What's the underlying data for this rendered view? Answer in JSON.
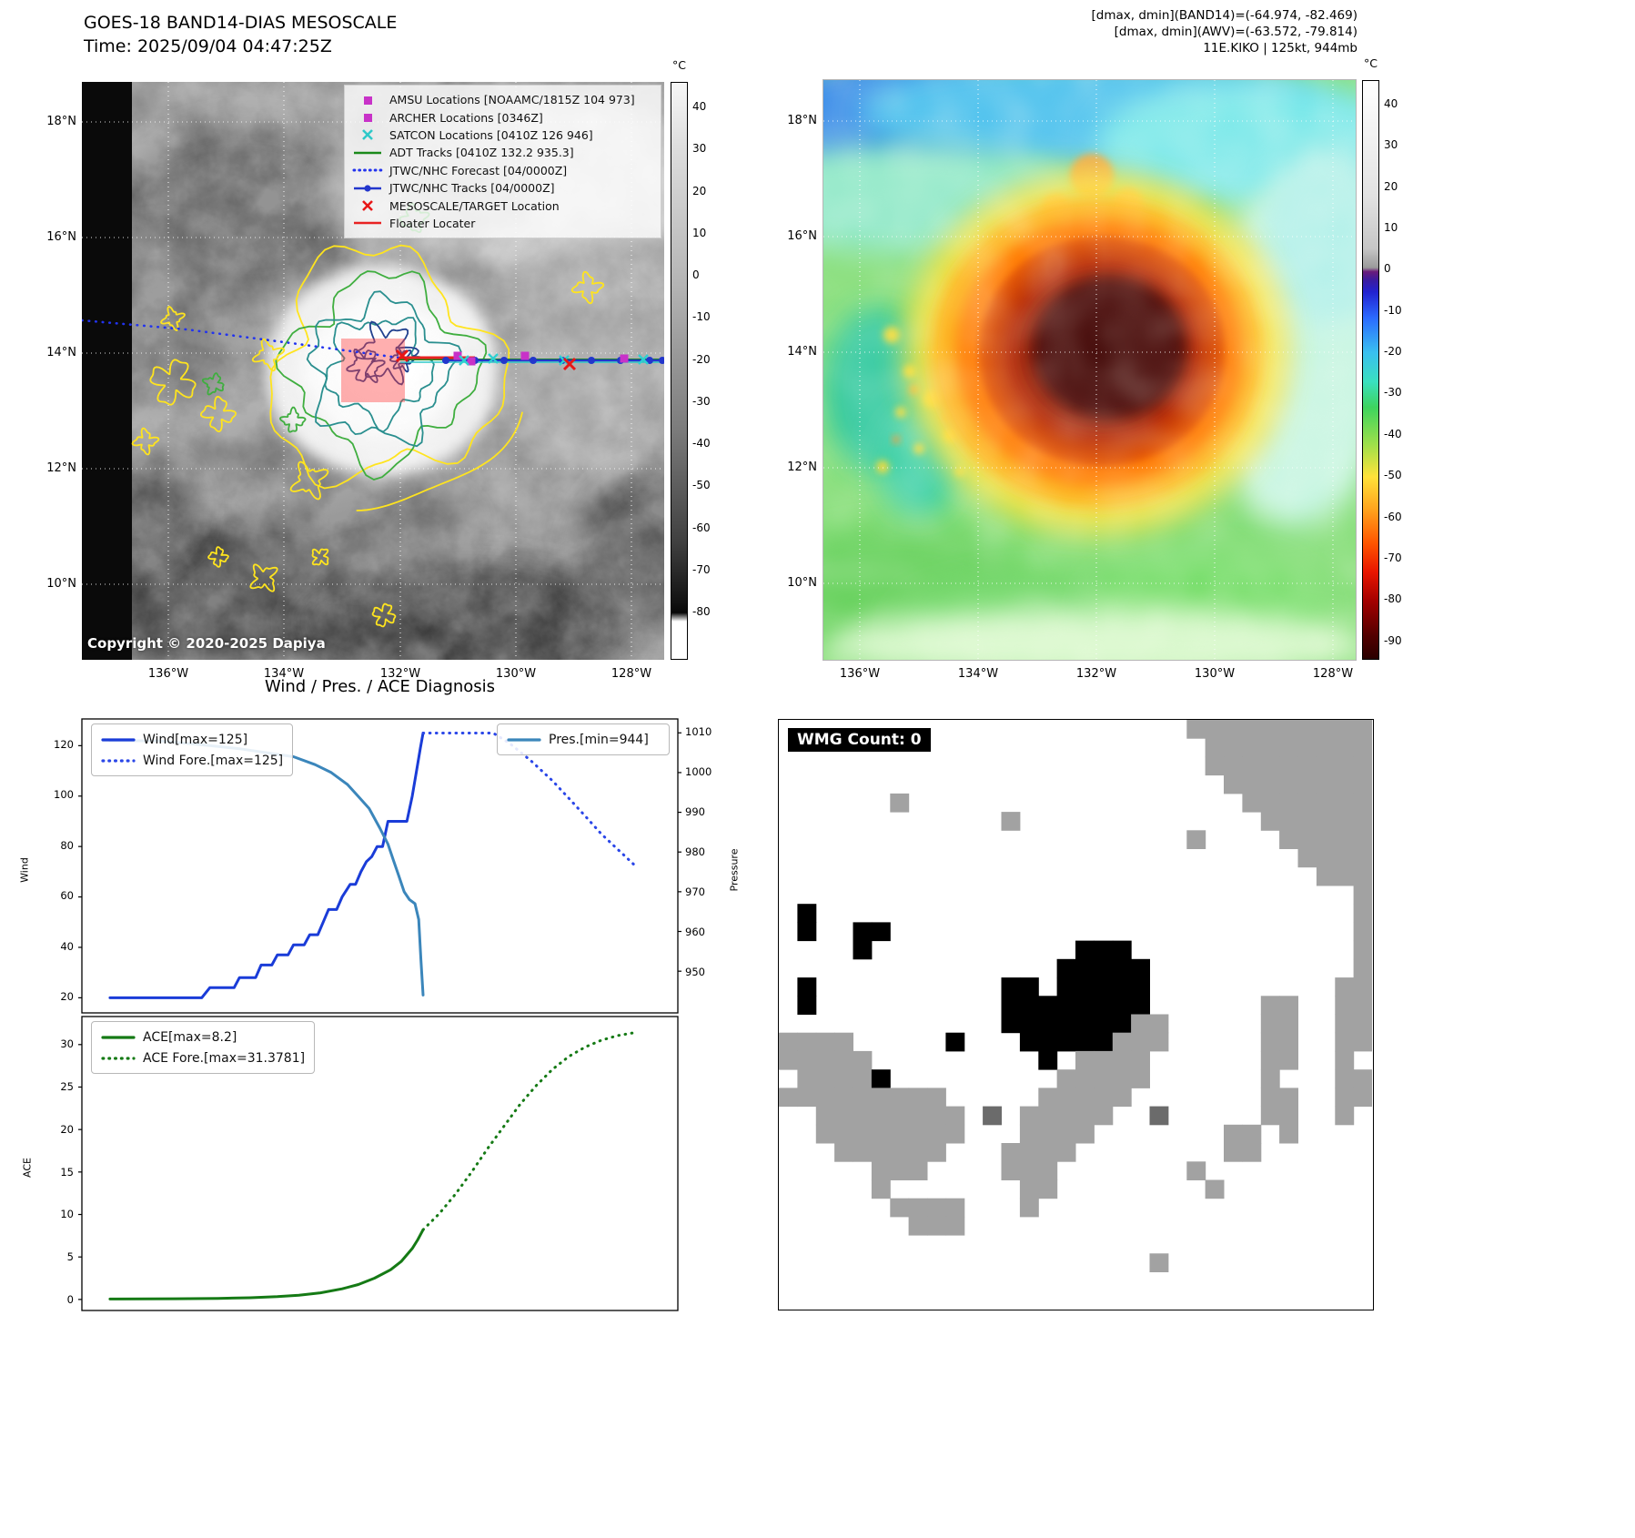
{
  "panel_tl": {
    "title": "GOES-18 BAND14-DIAS MESOSCALE",
    "subtitle": "Time: 2025/09/04 04:47:25Z",
    "copyright": "Copyright © 2020-2025 Dapiya",
    "colorbar": {
      "unit": "°C",
      "ticks": [
        40,
        30,
        20,
        10,
        0,
        -10,
        -20,
        -30,
        -40,
        -50,
        -60,
        -70,
        -80
      ]
    },
    "x_ticks": [
      "136°W",
      "134°W",
      "132°W",
      "130°W",
      "128°W"
    ],
    "y_ticks": [
      "18°N",
      "16°N",
      "14°N",
      "12°N",
      "10°N"
    ],
    "legend": [
      {
        "label": "AMSU Locations [NOAAMC/1815Z 104 973]",
        "marker": "square",
        "color": "#c832c8"
      },
      {
        "label": "ARCHER Locations [0346Z]",
        "marker": "square",
        "color": "#c832c8"
      },
      {
        "label": "SATCON Locations [0410Z 126 946]",
        "marker": "x",
        "color": "#2ec8c8"
      },
      {
        "label": "ADT Tracks [0410Z 132.2 935.3]",
        "marker": "line",
        "color": "#1a8a1a"
      },
      {
        "label": "JTWC/NHC Forecast [04/0000Z]",
        "marker": "dotted",
        "color": "#2233ee"
      },
      {
        "label": "JTWC/NHC Tracks [04/0000Z]",
        "marker": "line-dot",
        "color": "#2236cc"
      },
      {
        "label": "MESOSCALE/TARGET Location",
        "marker": "x",
        "color": "#e81616"
      },
      {
        "label": "Floater Locater",
        "marker": "line",
        "color": "#e82222"
      }
    ]
  },
  "panel_tr": {
    "header_lines": [
      "[dmax, dmin](BAND14)=(-64.974, -82.469)",
      "[dmax, dmin](AWV)=(-63.572, -79.814)",
      "11E.KIKO | 125kt, 944mb"
    ],
    "colorbar": {
      "unit": "°C",
      "ticks": [
        40,
        30,
        20,
        10,
        0,
        -10,
        -20,
        -30,
        -40,
        -50,
        -60,
        -70,
        -80,
        -90
      ]
    },
    "x_ticks": [
      "136°W",
      "134°W",
      "132°W",
      "130°W",
      "128°W"
    ],
    "y_ticks": [
      "18°N",
      "16°N",
      "14°N",
      "12°N",
      "10°N"
    ]
  },
  "chart_data": [
    {
      "type": "line",
      "title": "Wind / Pres. / ACE Diagnosis",
      "ylabel_left": "Wind",
      "ylabel_right": "Pressure",
      "xlim": [
        -5.2,
        105.2
      ],
      "ylim_left": [
        14,
        130.6
      ],
      "ylim_right": [
        939.5,
        1013.5
      ],
      "yticks_left": [
        20,
        40,
        60,
        80,
        100,
        120
      ],
      "yticks_right": [
        950,
        960,
        970,
        980,
        990,
        1000,
        1010
      ],
      "grid": false,
      "series": [
        {
          "name": "Wind[max=125]",
          "style": "solid",
          "color": "#1a3cd8",
          "axis": "left",
          "points": [
            [
              0,
              20
            ],
            [
              17,
              20
            ],
            [
              18.5,
              24
            ],
            [
              23,
              24
            ],
            [
              24,
              28
            ],
            [
              27,
              28
            ],
            [
              28,
              33
            ],
            [
              30,
              33
            ],
            [
              31,
              37
            ],
            [
              33,
              37
            ],
            [
              34,
              41
            ],
            [
              36,
              41
            ],
            [
              37,
              45
            ],
            [
              38.5,
              45
            ],
            [
              39.5,
              50
            ],
            [
              40.5,
              55
            ],
            [
              42,
              55
            ],
            [
              43,
              60
            ],
            [
              44.5,
              65
            ],
            [
              45.5,
              65
            ],
            [
              46.5,
              70
            ],
            [
              47.5,
              74
            ],
            [
              48.5,
              76
            ],
            [
              49.5,
              80
            ],
            [
              50.5,
              80
            ],
            [
              51.5,
              90
            ],
            [
              55,
              90
            ],
            [
              56,
              100
            ],
            [
              56.8,
              110
            ],
            [
              57.5,
              119
            ],
            [
              58,
              125
            ]
          ]
        },
        {
          "name": "Wind Fore.[max=125]",
          "style": "dotted",
          "color": "#2a46e8",
          "axis": "left",
          "points": [
            [
              58,
              125
            ],
            [
              71,
              125
            ],
            [
              74,
              121
            ],
            [
              78,
              114
            ],
            [
              82,
              106
            ],
            [
              85.5,
              98
            ],
            [
              88.5,
              91
            ],
            [
              91,
              85
            ],
            [
              93.5,
              80
            ],
            [
              95.5,
              76
            ],
            [
              97,
              73
            ]
          ]
        },
        {
          "name": "Pres.[min=944]",
          "style": "solid",
          "color": "#3b86bb",
          "axis": "right",
          "points": [
            [
              0,
              1008
            ],
            [
              9,
              1008
            ],
            [
              17,
              1007
            ],
            [
              24,
              1006
            ],
            [
              29,
              1005
            ],
            [
              34,
              1004
            ],
            [
              38,
              1002
            ],
            [
              41,
              1000
            ],
            [
              44,
              997
            ],
            [
              46,
              994
            ],
            [
              48,
              991
            ],
            [
              50,
              986
            ],
            [
              51.5,
              982
            ],
            [
              52.5,
              978
            ],
            [
              53.5,
              974
            ],
            [
              54.5,
              970
            ],
            [
              55.5,
              968
            ],
            [
              56.5,
              967
            ],
            [
              57.2,
              963
            ],
            [
              57.6,
              953
            ],
            [
              58,
              944
            ]
          ]
        }
      ]
    },
    {
      "type": "line",
      "ylabel_left": "ACE",
      "xlim": [
        -5.2,
        105.2
      ],
      "ylim_left": [
        -1.3,
        33.3
      ],
      "yticks_left": [
        0,
        5,
        10,
        15,
        20,
        25,
        30
      ],
      "grid": false,
      "series": [
        {
          "name": "ACE[max=8.2]",
          "style": "solid",
          "color": "#157a15",
          "axis": "left",
          "points": [
            [
              0,
              0.05
            ],
            [
              12,
              0.08
            ],
            [
              20,
              0.13
            ],
            [
              26,
              0.2
            ],
            [
              31,
              0.33
            ],
            [
              35,
              0.5
            ],
            [
              39,
              0.78
            ],
            [
              43,
              1.25
            ],
            [
              46,
              1.75
            ],
            [
              49,
              2.5
            ],
            [
              52,
              3.5
            ],
            [
              54,
              4.5
            ],
            [
              56,
              6.0
            ],
            [
              57,
              7.0
            ],
            [
              58,
              8.2
            ]
          ]
        },
        {
          "name": "ACE Fore.[max=31.3781]",
          "style": "dotted",
          "color": "#157a15",
          "axis": "left",
          "points": [
            [
              58,
              8.2
            ],
            [
              61,
              10.1
            ],
            [
              64,
              12.4
            ],
            [
              67,
              15.0
            ],
            [
              70,
              17.8
            ],
            [
              73,
              20.4
            ],
            [
              76,
              23.0
            ],
            [
              79,
              25.2
            ],
            [
              82,
              27.1
            ],
            [
              85,
              28.6
            ],
            [
              88,
              29.7
            ],
            [
              91,
              30.5
            ],
            [
              94,
              31.05
            ],
            [
              97,
              31.38
            ]
          ]
        }
      ]
    }
  ],
  "wmg": {
    "count_label": "WMG Count: 0",
    "colors": {
      "G": "#a2a2a2",
      "B": "#000000",
      "D": "#6b6b6b"
    },
    "grid": [
      "......................GGGGGGGGGG",
      ".......................GGGGGGGGG",
      ".......................GGGGGGGGG",
      "........................GGGGGGGG",
      "......G..................GGGGGGG",
      "............G.............GGGGGG",
      "......................G....GGGGG",
      "............................GGGG",
      ".............................GGG",
      "...............................G",
      ".B.............................G",
      ".B..BB.........................G",
      "....B...........BBB............G",
      "...............BBBBB...........G",
      ".B..........BB.BBBBB..........GG",
      ".B..........BBBBBBBB......GG..GG",
      "............BBBBBBBGG.....GG..GG",
      "GGGG.....B...BBBBBGGG.....GG..GG",
      "GGGGG.........B.GGGG......GG..G.",
      ".GGGGB.........GGGGG......G...GG",
      "GGGGGGGGG.....GGGGG.......GG..GG",
      "..GGGGGGGG.D.GGGGG..D.....GG..G.",
      "..GGGGGGGG...GGGG.......GG.G....",
      "...GGGGGG...GGGG........GG......",
      ".....GGG....GGG.......G.........",
      ".....G.......GG........G........",
      "......GGGG...G..................",
      ".......GGG......................",
      "................................",
      "....................G...........",
      "................................",
      "................................"
    ]
  }
}
